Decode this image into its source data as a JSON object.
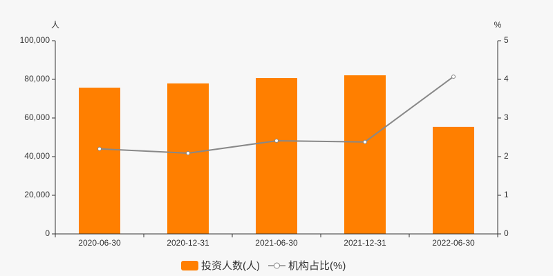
{
  "chart_data": {
    "type": "bar",
    "y_axis_label": "人",
    "y2_axis_label": "%",
    "categories": [
      "2020-06-30",
      "2020-12-31",
      "2021-06-30",
      "2021-12-31",
      "2022-06-30"
    ],
    "series": [
      {
        "name": "投资人数(人)",
        "type": "bar",
        "color": "#ff7f00",
        "values": [
          75700,
          77900,
          80700,
          82100,
          55400
        ]
      },
      {
        "name": "机构占比(%)",
        "type": "line",
        "axis": "y2",
        "color": "#888888",
        "values": [
          2.2,
          2.09,
          2.41,
          2.38,
          4.07
        ]
      }
    ],
    "ylim": [
      0,
      100000
    ],
    "yticks": [
      0,
      {
        "value": 20000,
        "label": "20,000"
      },
      {
        "value": 40000,
        "label": "40,000"
      },
      {
        "value": 60000,
        "label": "60,000"
      },
      {
        "value": 80000,
        "label": "80,000"
      },
      {
        "value": 100000,
        "label": "100,000"
      }
    ],
    "y2lim": [
      0,
      5
    ],
    "y2ticks": [
      0,
      1,
      2,
      3,
      4,
      5
    ],
    "grid": false,
    "legend": "bottom"
  }
}
